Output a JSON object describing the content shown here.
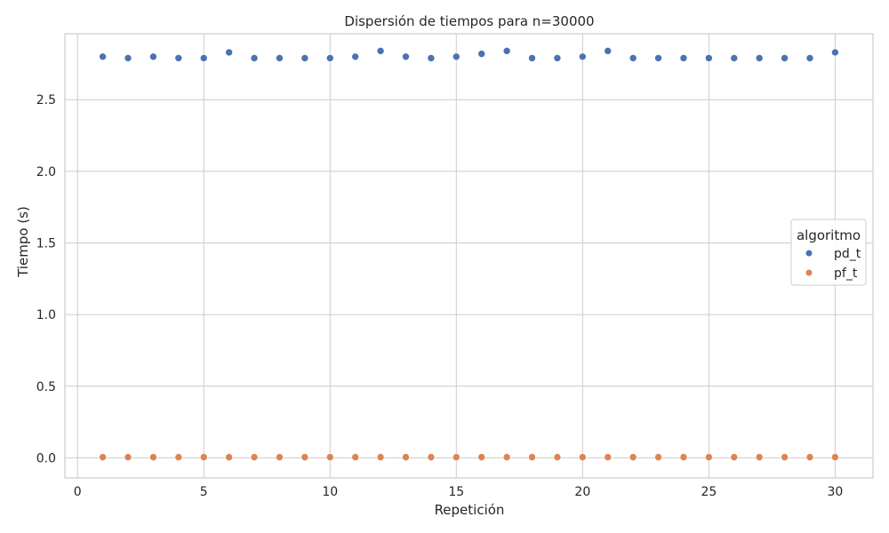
{
  "chart_data": {
    "type": "scatter",
    "title": "Dispersión de tiempos para n=30000",
    "xlabel": "Repetición",
    "ylabel": "Tiempo (s)",
    "xlim": [
      -0.5,
      31.5
    ],
    "ylim": [
      -0.14,
      2.96
    ],
    "xticks": [
      0,
      5,
      10,
      15,
      20,
      25,
      30
    ],
    "xtick_labels": [
      "0",
      "5",
      "10",
      "15",
      "20",
      "25",
      "30"
    ],
    "yticks": [
      0.0,
      0.5,
      1.0,
      1.5,
      2.0,
      2.5
    ],
    "ytick_labels": [
      "0.0",
      "0.5",
      "1.0",
      "1.5",
      "2.0",
      "2.5"
    ],
    "grid": true,
    "legend": {
      "title": "algoritmo",
      "placement": "center-right"
    },
    "x": [
      1,
      2,
      3,
      4,
      5,
      6,
      7,
      8,
      9,
      10,
      11,
      12,
      13,
      14,
      15,
      16,
      17,
      18,
      19,
      20,
      21,
      22,
      23,
      24,
      25,
      26,
      27,
      28,
      29,
      30
    ],
    "series": [
      {
        "name": "pd_t",
        "color": "#4c72b0",
        "values": [
          2.8,
          2.79,
          2.8,
          2.79,
          2.79,
          2.83,
          2.79,
          2.79,
          2.79,
          2.79,
          2.8,
          2.84,
          2.8,
          2.79,
          2.8,
          2.82,
          2.84,
          2.79,
          2.79,
          2.8,
          2.84,
          2.79,
          2.79,
          2.79,
          2.79,
          2.79,
          2.79,
          2.79,
          2.79,
          2.83
        ]
      },
      {
        "name": "pf_t",
        "color": "#dd8452",
        "values": [
          0.005,
          0.005,
          0.005,
          0.005,
          0.005,
          0.005,
          0.005,
          0.005,
          0.005,
          0.005,
          0.005,
          0.005,
          0.005,
          0.005,
          0.005,
          0.005,
          0.005,
          0.005,
          0.005,
          0.005,
          0.005,
          0.005,
          0.005,
          0.005,
          0.005,
          0.005,
          0.005,
          0.005,
          0.005,
          0.005
        ]
      }
    ]
  }
}
